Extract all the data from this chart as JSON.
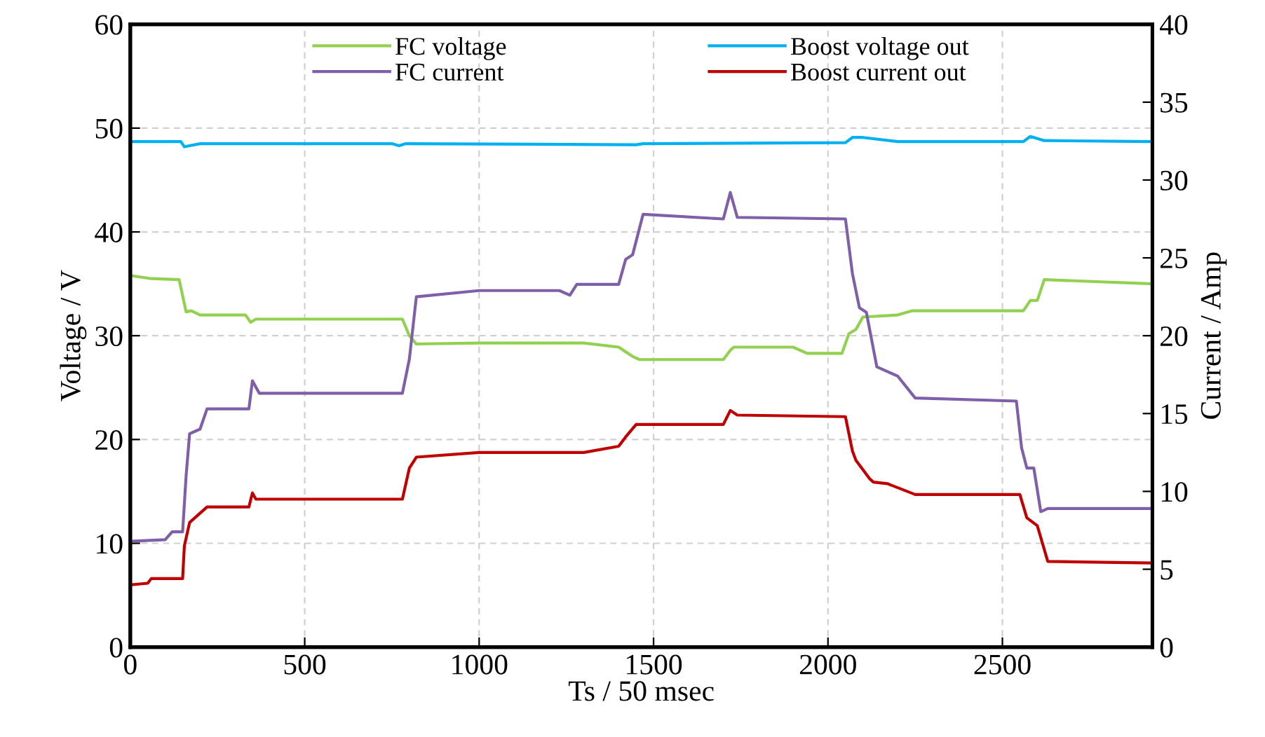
{
  "chart_data": {
    "type": "line",
    "xlabel": "Ts / 50 msec",
    "ylabel": "Voltage / V",
    "y2label": "Current / Amp",
    "xlim": [
      0,
      2930
    ],
    "xticks": [
      0,
      500,
      1000,
      1500,
      2000,
      2500
    ],
    "ylim": [
      0,
      60
    ],
    "yticks": [
      0,
      10,
      20,
      30,
      40,
      50,
      60
    ],
    "y2lim": [
      0,
      40
    ],
    "y2ticks": [
      0,
      5,
      10,
      15,
      20,
      25,
      30,
      35,
      40
    ],
    "grid": true,
    "legend": "top",
    "marker": "none",
    "line_style": "solid",
    "series": [
      {
        "name": "FC voltage",
        "color": "#92d050",
        "x": [
          0,
          60,
          140,
          160,
          175,
          200,
          330,
          345,
          360,
          780,
          800,
          820,
          1000,
          1300,
          1400,
          1440,
          1460,
          1700,
          1720,
          1730,
          1900,
          1940,
          2040,
          2060,
          2080,
          2100,
          2200,
          2240,
          2560,
          2580,
          2600,
          2620,
          2930
        ],
        "values": [
          35.8,
          35.5,
          35.4,
          32.3,
          32.4,
          32.0,
          32.0,
          31.3,
          31.6,
          31.6,
          30.0,
          29.2,
          29.3,
          29.3,
          28.9,
          28.0,
          27.7,
          27.7,
          28.6,
          28.9,
          28.9,
          28.3,
          28.3,
          30.2,
          30.6,
          31.8,
          32.0,
          32.4,
          32.4,
          33.4,
          33.4,
          35.4,
          35.0
        ]
      },
      {
        "name": "FC current",
        "color": "#7f5fa8",
        "axis": "y2",
        "x": [
          0,
          100,
          120,
          150,
          160,
          170,
          200,
          220,
          235,
          340,
          350,
          370,
          780,
          800,
          820,
          1000,
          1230,
          1260,
          1280,
          1400,
          1420,
          1440,
          1470,
          1700,
          1720,
          1740,
          2050,
          2070,
          2090,
          2110,
          2140,
          2200,
          2250,
          2540,
          2555,
          2570,
          2590,
          2610,
          2630,
          2930
        ],
        "values": [
          6.8,
          6.9,
          7.4,
          7.4,
          11.0,
          13.7,
          14.0,
          15.3,
          15.3,
          15.3,
          17.1,
          16.3,
          16.3,
          18.5,
          22.5,
          22.9,
          22.9,
          22.6,
          23.3,
          23.3,
          24.9,
          25.2,
          27.8,
          27.5,
          29.2,
          27.6,
          27.5,
          24.0,
          21.8,
          21.5,
          18.0,
          17.4,
          16.0,
          15.8,
          12.8,
          11.5,
          11.5,
          8.7,
          8.9,
          8.9
        ]
      },
      {
        "name": "Boost voltage out",
        "color": "#00b0f0",
        "x": [
          0,
          145,
          155,
          170,
          200,
          750,
          770,
          790,
          1450,
          1470,
          2050,
          2070,
          2100,
          2200,
          2560,
          2580,
          2620,
          2930
        ],
        "values": [
          48.7,
          48.7,
          48.2,
          48.3,
          48.5,
          48.5,
          48.3,
          48.5,
          48.4,
          48.5,
          48.6,
          49.1,
          49.1,
          48.7,
          48.7,
          49.2,
          48.8,
          48.7
        ]
      },
      {
        "name": "Boost current out",
        "color": "#c00000",
        "axis": "y2",
        "x": [
          0,
          50,
          60,
          150,
          155,
          170,
          180,
          220,
          340,
          350,
          360,
          780,
          800,
          820,
          1000,
          1300,
          1400,
          1420,
          1450,
          1700,
          1720,
          1740,
          2050,
          2070,
          2080,
          2120,
          2130,
          2170,
          2250,
          2550,
          2570,
          2600,
          2630,
          2930
        ],
        "values": [
          4.0,
          4.1,
          4.4,
          4.4,
          6.5,
          8.0,
          8.2,
          9.0,
          9.0,
          9.9,
          9.5,
          9.5,
          11.5,
          12.2,
          12.5,
          12.5,
          12.9,
          13.5,
          14.3,
          14.3,
          15.2,
          14.9,
          14.8,
          12.6,
          12.0,
          10.8,
          10.6,
          10.5,
          9.8,
          9.8,
          8.3,
          7.8,
          5.5,
          5.4
        ]
      }
    ]
  }
}
